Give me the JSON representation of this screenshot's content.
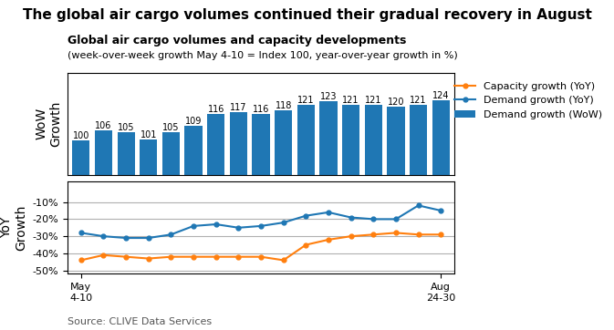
{
  "chart_data": [
    {
      "type": "bar",
      "title": "The global air cargo volumes continued their gradual recovery in August",
      "subtitle": "Global air cargo volumes and capacity developments",
      "note": "(week-over-week growth May 4-10 = Index 100, year-over-year growth in %)",
      "categories": [
        "May\n4-10",
        null,
        null,
        null,
        null,
        null,
        null,
        null,
        null,
        null,
        null,
        null,
        null,
        null,
        null,
        null,
        "Aug\n24-30"
      ],
      "series": [
        {
          "name": "Demand growth (WoW)",
          "color": "#1f77b4",
          "values": [
            100,
            106,
            105,
            101,
            105,
            109,
            116,
            117,
            116,
            118,
            121,
            123,
            121,
            121,
            120,
            121,
            124
          ]
        }
      ],
      "y_label": "WoW\nGrowth",
      "ylim": [
        80,
        140
      ],
      "tick_labels": false,
      "data_labels": true,
      "grid": false,
      "legend": "upper right"
    },
    {
      "type": "line",
      "categories": [
        "May\n4-10",
        null,
        null,
        null,
        null,
        null,
        null,
        null,
        null,
        null,
        null,
        null,
        null,
        null,
        null,
        null,
        "Aug\n24-30"
      ],
      "series": [
        {
          "name": "Capacity growth (YoY)",
          "color": "#ff7f0e",
          "marker": "circle",
          "values": [
            -44,
            -41,
            -42,
            -43,
            -42,
            -42,
            -42,
            -42,
            -42,
            -44,
            -35,
            -32,
            -30,
            -29,
            -28,
            -29,
            -29
          ]
        },
        {
          "name": "Demand growth (YoY)",
          "color": "#1f77b4",
          "marker": "circle",
          "values": [
            -28,
            -30,
            -31,
            -31,
            -29,
            -24,
            -23,
            -25,
            -24,
            -22,
            -18,
            -16,
            -19,
            -20,
            -20,
            -12,
            -15
          ]
        }
      ],
      "y_label": "YoY\nGrowth",
      "ylim": [
        -52,
        2
      ],
      "yticks": [
        {
          "value": -50,
          "label": "-50%"
        },
        {
          "value": -40,
          "label": "-40%"
        },
        {
          "value": -30,
          "label": "-30%"
        },
        {
          "value": -20,
          "label": "-20%"
        },
        {
          "value": -10,
          "label": "-10%"
        }
      ],
      "grid": true,
      "source": "Source: CLIVE Data Services"
    }
  ]
}
